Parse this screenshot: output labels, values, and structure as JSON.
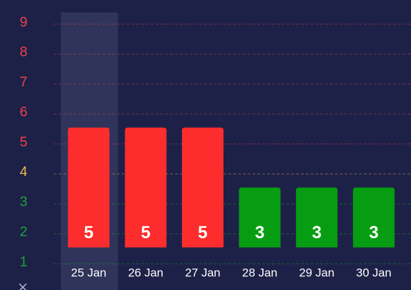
{
  "chart_data": {
    "type": "bar",
    "categories": [
      "25 Jan",
      "26 Jan",
      "27 Jan",
      "28 Jan",
      "29 Jan",
      "30 Jan"
    ],
    "values": [
      5,
      5,
      5,
      3,
      3,
      3
    ],
    "colors": [
      "#fd2d2d",
      "#fd2d2d",
      "#fd2d2d",
      "#069d12",
      "#069d12",
      "#069d12"
    ],
    "ylim": [
      0.5,
      9.5
    ],
    "yticks": [
      1,
      2,
      3,
      4,
      5,
      6,
      7,
      8,
      9
    ],
    "ytick_colors": [
      "#1aa33a",
      "#1aa33a",
      "#1aa33a",
      "#e8b84a",
      "#e8424c",
      "#e8424c",
      "#e8424c",
      "#e8424c",
      "#e8424c"
    ],
    "grid": true,
    "highlight_category": 0
  }
}
